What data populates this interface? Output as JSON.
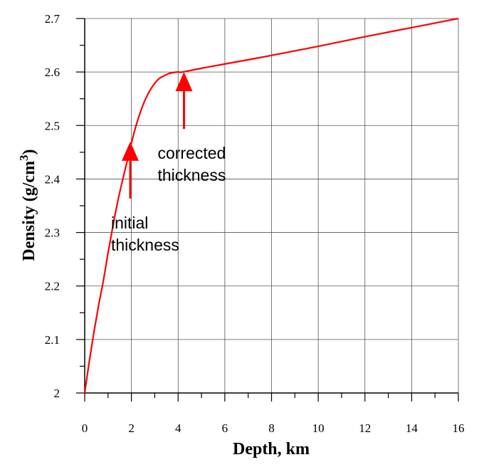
{
  "chart_data": {
    "type": "line",
    "xlabel": "Depth, km",
    "ylabel": "Density (g/cm",
    "ylabel_sup": "3",
    "ylabel_close": ")",
    "xlim": [
      0,
      16
    ],
    "ylim": [
      2.0,
      2.7
    ],
    "xticks": [
      "0",
      "2",
      "4",
      "6",
      "8",
      "10",
      "12",
      "14",
      "16"
    ],
    "yticks": [
      "2",
      "2.1",
      "2.2",
      "2.3",
      "2.4",
      "2.5",
      "2.6",
      "2.7"
    ],
    "grid": true,
    "series": [
      {
        "color": "#ff0000",
        "x": [
          0,
          0.2,
          0.4,
          0.6,
          0.8,
          1.0,
          1.2,
          1.4,
          1.6,
          1.8,
          2.0,
          2.2,
          2.4,
          2.6,
          2.8,
          3.0,
          3.2,
          3.4,
          3.6,
          3.8,
          4.0,
          4.2,
          5,
          6,
          8,
          10,
          12,
          14,
          16
        ],
        "y": [
          2.0,
          2.06,
          2.115,
          2.165,
          2.21,
          2.262,
          2.31,
          2.355,
          2.394,
          2.43,
          2.467,
          2.5,
          2.527,
          2.549,
          2.566,
          2.579,
          2.588,
          2.593,
          2.597,
          2.599,
          2.6,
          2.6,
          2.607,
          2.615,
          2.631,
          2.648,
          2.666,
          2.683,
          2.7
        ]
      }
    ],
    "annotations": [
      {
        "lines": [
          "initial",
          "thickness"
        ],
        "x": 1.95,
        "y": 2.47,
        "color": "#ff0000"
      },
      {
        "lines": [
          "corrected",
          "thickness"
        ],
        "x": 4.25,
        "y": 2.6,
        "color": "#ff0000"
      }
    ]
  }
}
